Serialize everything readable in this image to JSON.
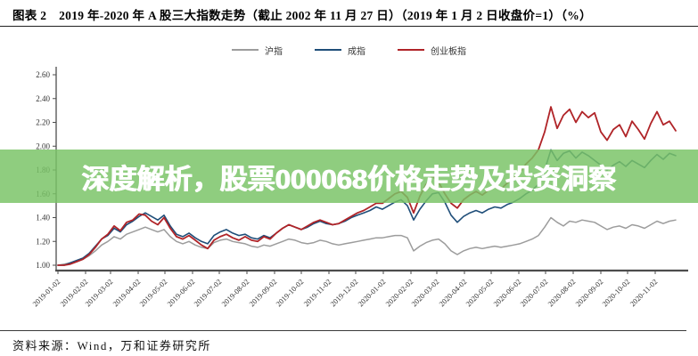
{
  "header": {
    "title": "图表 2　2019 年-2020 年 A 股三大指数走势（截止 2002 年 11 月 27 日）（2019 年 1 月 2 日收盘价=1）（%）"
  },
  "overlay": {
    "text": "深度解析，股票000068价格走势及投资洞察",
    "background": "#7AC467",
    "opacity": 0.84,
    "text_color": "#FFFFFF"
  },
  "footer": {
    "source": "资料来源：Wind，万和证券研究所"
  },
  "colors": {
    "axis": "#4d4d4d",
    "tick_label": "#333333",
    "series_gray": "#9C9C9C",
    "series_blue": "#1F4E79",
    "series_red": "#B02428"
  },
  "chart_data": {
    "type": "line",
    "title": "2019 年-2020 年 A 股三大指数走势（2019 年 1 月 2 日收盘价=1）",
    "xlabel": "",
    "ylabel": "",
    "ylim": [
      1.0,
      2.6
    ],
    "y_ticks": [
      1.0,
      1.2,
      1.4,
      1.6,
      1.8,
      2.0,
      2.2,
      2.4,
      2.6
    ],
    "grid": false,
    "legend_position": "top",
    "start_date": "2019-01-02",
    "interval_days": 7,
    "x_tick_labels": [
      "2019-01-02",
      "2019-02-02",
      "2019-03-02",
      "2019-04-02",
      "2019-05-02",
      "2019-06-02",
      "2019-07-02",
      "2019-08-02",
      "2019-09-02",
      "2019-10-02",
      "2019-11-02",
      "2019-12-02",
      "2020-01-02",
      "2020-02-02",
      "2020-03-02",
      "2020-04-02",
      "2020-05-02",
      "2020-06-02",
      "2020-07-02",
      "2020-08-02",
      "2020-09-02",
      "2020-10-02",
      "2020-11-02"
    ],
    "series": [
      {
        "name": "沪指",
        "color": "#9C9C9C",
        "values": [
          1.0,
          1.01,
          1.02,
          1.03,
          1.05,
          1.08,
          1.12,
          1.17,
          1.2,
          1.24,
          1.22,
          1.26,
          1.28,
          1.3,
          1.32,
          1.3,
          1.28,
          1.3,
          1.24,
          1.2,
          1.18,
          1.2,
          1.17,
          1.15,
          1.14,
          1.19,
          1.21,
          1.22,
          1.2,
          1.19,
          1.18,
          1.16,
          1.15,
          1.17,
          1.16,
          1.18,
          1.2,
          1.22,
          1.21,
          1.19,
          1.18,
          1.19,
          1.21,
          1.2,
          1.18,
          1.17,
          1.18,
          1.19,
          1.2,
          1.21,
          1.22,
          1.23,
          1.23,
          1.24,
          1.25,
          1.25,
          1.23,
          1.12,
          1.16,
          1.19,
          1.21,
          1.22,
          1.18,
          1.12,
          1.09,
          1.12,
          1.14,
          1.15,
          1.14,
          1.15,
          1.16,
          1.15,
          1.16,
          1.17,
          1.18,
          1.2,
          1.22,
          1.25,
          1.32,
          1.4,
          1.36,
          1.33,
          1.37,
          1.36,
          1.38,
          1.37,
          1.36,
          1.33,
          1.3,
          1.32,
          1.33,
          1.31,
          1.34,
          1.33,
          1.31,
          1.34,
          1.37,
          1.35,
          1.37,
          1.38
        ]
      },
      {
        "name": "成指",
        "color": "#1F4E79",
        "values": [
          1.0,
          1.0,
          1.02,
          1.04,
          1.06,
          1.1,
          1.16,
          1.22,
          1.25,
          1.31,
          1.28,
          1.34,
          1.37,
          1.41,
          1.44,
          1.41,
          1.38,
          1.42,
          1.33,
          1.26,
          1.24,
          1.27,
          1.23,
          1.2,
          1.18,
          1.25,
          1.28,
          1.3,
          1.27,
          1.25,
          1.26,
          1.23,
          1.22,
          1.25,
          1.23,
          1.27,
          1.31,
          1.34,
          1.32,
          1.3,
          1.32,
          1.35,
          1.37,
          1.35,
          1.34,
          1.35,
          1.37,
          1.4,
          1.42,
          1.44,
          1.46,
          1.49,
          1.47,
          1.5,
          1.53,
          1.55,
          1.5,
          1.38,
          1.47,
          1.54,
          1.6,
          1.61,
          1.53,
          1.42,
          1.36,
          1.41,
          1.44,
          1.46,
          1.44,
          1.47,
          1.49,
          1.48,
          1.51,
          1.53,
          1.56,
          1.6,
          1.63,
          1.68,
          1.8,
          1.97,
          1.88,
          1.94,
          1.96,
          1.9,
          1.95,
          1.92,
          1.88,
          1.84,
          1.8,
          1.84,
          1.87,
          1.83,
          1.88,
          1.85,
          1.82,
          1.88,
          1.93,
          1.89,
          1.94,
          1.92
        ]
      },
      {
        "name": "创业板指",
        "color": "#B02428",
        "values": [
          1.0,
          1.0,
          1.01,
          1.03,
          1.05,
          1.09,
          1.15,
          1.22,
          1.26,
          1.33,
          1.29,
          1.36,
          1.38,
          1.43,
          1.42,
          1.37,
          1.34,
          1.4,
          1.31,
          1.24,
          1.22,
          1.25,
          1.21,
          1.17,
          1.14,
          1.21,
          1.24,
          1.26,
          1.23,
          1.21,
          1.24,
          1.21,
          1.2,
          1.24,
          1.22,
          1.27,
          1.31,
          1.34,
          1.32,
          1.3,
          1.33,
          1.36,
          1.38,
          1.36,
          1.34,
          1.35,
          1.38,
          1.41,
          1.44,
          1.46,
          1.49,
          1.52,
          1.52,
          1.56,
          1.6,
          1.62,
          1.57,
          1.44,
          1.58,
          1.68,
          1.75,
          1.7,
          1.6,
          1.52,
          1.48,
          1.55,
          1.59,
          1.62,
          1.59,
          1.63,
          1.66,
          1.64,
          1.69,
          1.73,
          1.78,
          1.85,
          1.9,
          1.97,
          2.12,
          2.33,
          2.15,
          2.26,
          2.31,
          2.2,
          2.29,
          2.24,
          2.28,
          2.12,
          2.05,
          2.14,
          2.18,
          2.08,
          2.21,
          2.14,
          2.06,
          2.19,
          2.29,
          2.18,
          2.21,
          2.13
        ]
      }
    ]
  }
}
